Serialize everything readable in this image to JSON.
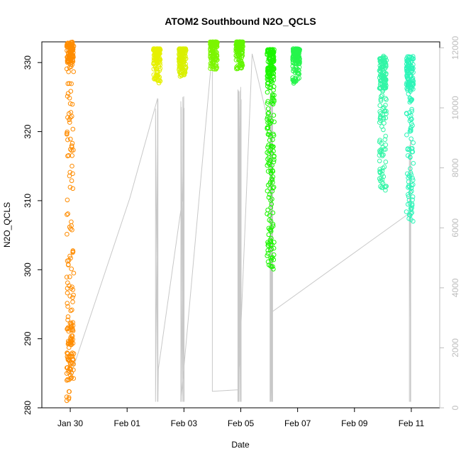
{
  "chart_data": {
    "type": "scatter",
    "title": "ATOM2 Southbound N2O_QCLS",
    "xlabel": "Date",
    "ylabel": "N2O_QCLS",
    "x_axis": {
      "start": "2016-01-28",
      "end": "2016-02-11",
      "ticks": [
        "Jan 30",
        "Feb 01",
        "Feb 03",
        "Feb 05",
        "Feb 07",
        "Feb 09",
        "Feb 11"
      ],
      "tick_days": [
        1,
        3,
        5,
        7,
        9,
        11,
        13
      ]
    },
    "y_left": {
      "ylim": [
        280,
        333
      ],
      "ticks": [
        280,
        290,
        300,
        310,
        320,
        330
      ]
    },
    "y_right": {
      "ylim": [
        0,
        12200
      ],
      "ticks": [
        0,
        2000,
        4000,
        6000,
        8000,
        10000,
        12000
      ],
      "color": "#bdbdbd"
    },
    "grid": false,
    "flights": [
      {
        "date": "Jan 29",
        "color": "#ff8c00",
        "n2o_range": [
          281,
          333
        ],
        "pattern": "tall"
      },
      {
        "date": "Feb 01",
        "color": "#e6f000",
        "n2o_range": [
          327,
          332
        ],
        "pattern": "top"
      },
      {
        "date": "Feb 01",
        "color": "#d9f000",
        "n2o_range": [
          328,
          332
        ],
        "pattern": "top"
      },
      {
        "date": "Feb 03",
        "color": "#7cf500",
        "n2o_range": [
          329,
          333
        ],
        "pattern": "top"
      },
      {
        "date": "Feb 03",
        "color": "#62f500",
        "n2o_range": [
          329,
          333
        ],
        "pattern": "top"
      },
      {
        "date": "Feb 05",
        "color": "#1cf500",
        "n2o_range": [
          300,
          332
        ],
        "pattern": "spread"
      },
      {
        "date": "Feb 05",
        "color": "#26f54c",
        "n2o_range": [
          327,
          332
        ],
        "pattern": "top"
      },
      {
        "date": "Feb 10",
        "color": "#33f5a6",
        "n2o_range": [
          311,
          330
        ],
        "pattern": "mid"
      },
      {
        "date": "Feb 10",
        "color": "#2df5b8",
        "n2o_range": [
          307,
          331
        ],
        "pattern": "mid"
      }
    ],
    "altitude_line": {
      "color": "#c8c8c8",
      "series": "altitude"
    }
  }
}
